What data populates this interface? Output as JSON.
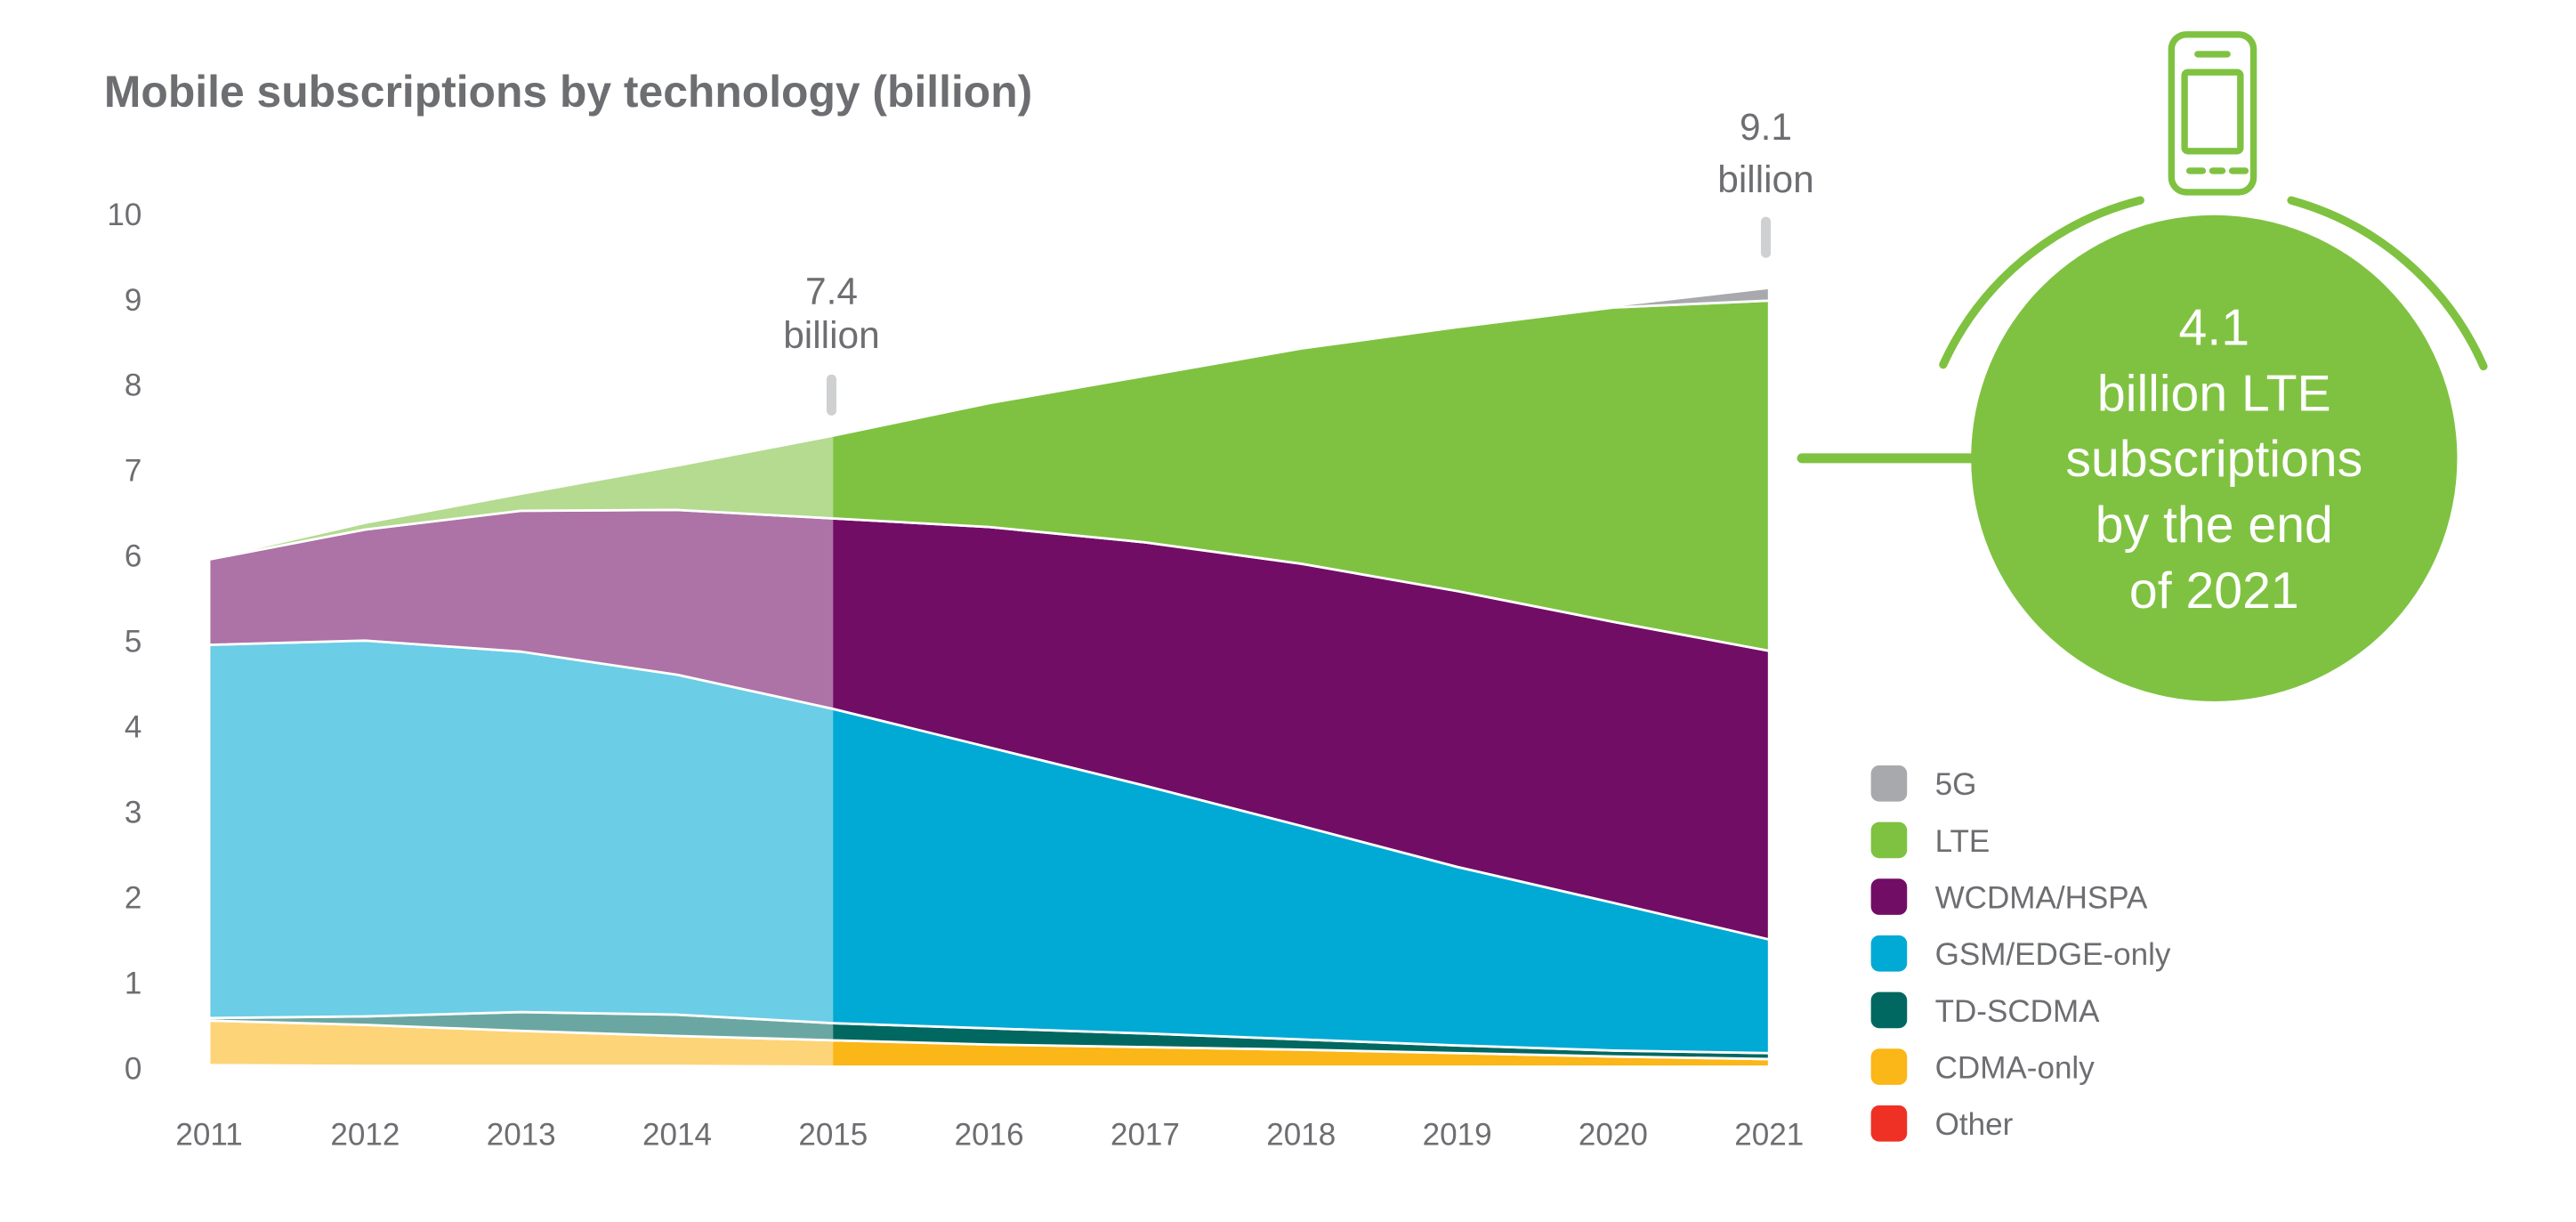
{
  "chart_data": {
    "type": "area",
    "stacked": true,
    "title": "Mobile subscriptions by technology (billion)",
    "xlabel": "",
    "ylabel": "",
    "ylim": [
      0,
      10
    ],
    "yticks": [
      "0",
      "1",
      "2",
      "3",
      "4",
      "5",
      "6",
      "7",
      "8",
      "9",
      "10"
    ],
    "categories": [
      "2011",
      "2012",
      "2013",
      "2014",
      "2015",
      "2016",
      "2017",
      "2018",
      "2019",
      "2020",
      "2021"
    ],
    "historical_until": "2015",
    "grid": false,
    "legend_position": "bottom-right",
    "series": [
      {
        "name": "Other",
        "color": "#ee3124",
        "values": [
          0.03,
          0.02,
          0.02,
          0.02,
          0.01,
          0.01,
          0.01,
          0.01,
          0.01,
          0.01,
          0.01
        ]
      },
      {
        "name": "CDMA-only",
        "color": "#fbb617",
        "values": [
          0.52,
          0.48,
          0.41,
          0.35,
          0.31,
          0.26,
          0.23,
          0.2,
          0.16,
          0.12,
          0.09
        ]
      },
      {
        "name": "TD-SCDMA",
        "color": "#006860",
        "values": [
          0.03,
          0.1,
          0.22,
          0.25,
          0.2,
          0.19,
          0.16,
          0.12,
          0.09,
          0.07,
          0.07
        ]
      },
      {
        "name": "GSM/EDGE-only",
        "color": "#00aad4",
        "values": [
          4.37,
          4.4,
          4.22,
          3.98,
          3.68,
          3.29,
          2.9,
          2.5,
          2.09,
          1.73,
          1.33
        ]
      },
      {
        "name": "WCDMA/HSPA",
        "color": "#720d66",
        "values": [
          1.0,
          1.3,
          1.65,
          1.93,
          2.23,
          2.58,
          2.85,
          3.07,
          3.23,
          3.29,
          3.38
        ]
      },
      {
        "name": "LTE",
        "color": "#7fc241",
        "values": [
          0.01,
          0.08,
          0.2,
          0.52,
          0.97,
          1.45,
          1.95,
          2.52,
          3.09,
          3.68,
          4.1
        ]
      },
      {
        "name": "5G",
        "color": "#a7a9ac",
        "values": [
          0,
          0,
          0,
          0,
          0,
          0,
          0,
          0,
          0,
          0.02,
          0.15
        ]
      }
    ],
    "legend_order": [
      "5G",
      "LTE",
      "WCDMA/HSPA",
      "GSM/EDGE-only",
      "TD-SCDMA",
      "CDMA-only",
      "Other"
    ],
    "annotations": [
      {
        "x": "2015",
        "value": "7.4",
        "unit": "billion"
      },
      {
        "x": "2021",
        "value": "9.1",
        "unit": "billion"
      }
    ]
  },
  "callout": {
    "lines": [
      "4.1",
      "billion LTE",
      "subscriptions",
      "by the end",
      "of 2021"
    ],
    "color": "#7fc241",
    "icon": "mobile-phone-icon"
  }
}
